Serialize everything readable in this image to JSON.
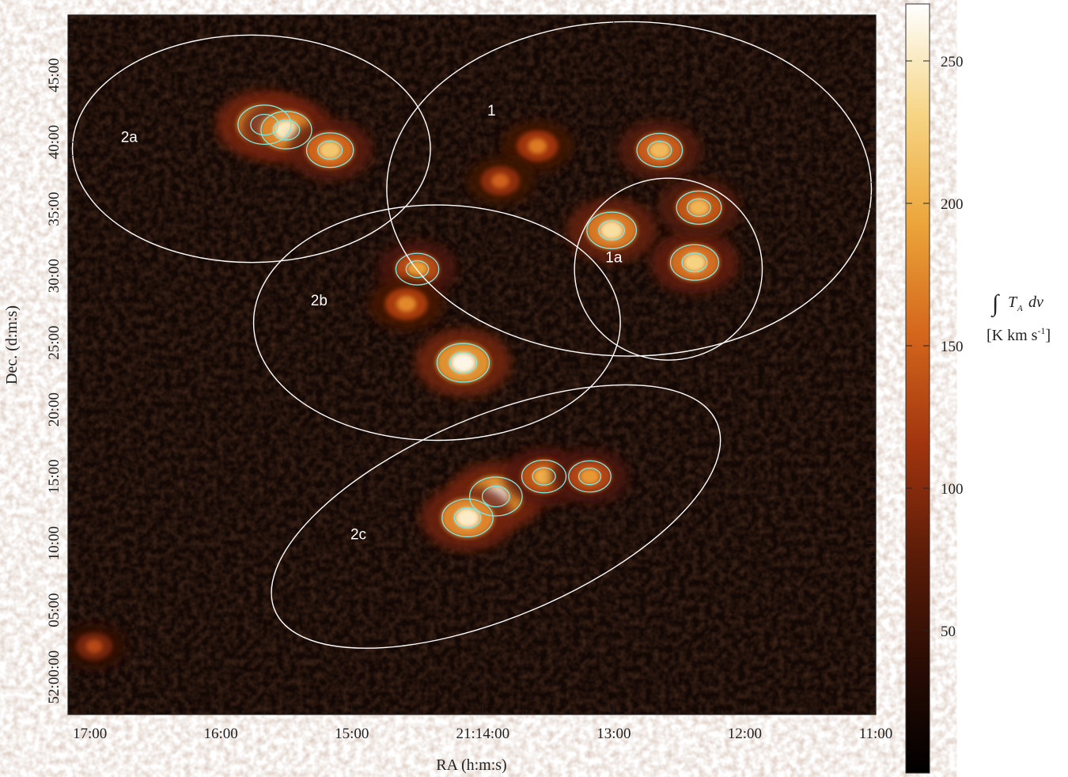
{
  "chart_data": {
    "type": "heatmap",
    "xlabel": "RA (h:m:s)",
    "ylabel": "Dec. (d:m:s)",
    "x_ticks": [
      {
        "label": "17:00",
        "ra_sec": 1020
      },
      {
        "label": "16:00",
        "ra_sec": 960
      },
      {
        "label": "15:00",
        "ra_sec": 900
      },
      {
        "label": "21:14:00",
        "ra_sec": 840
      },
      {
        "label": "13:00",
        "ra_sec": 780
      },
      {
        "label": "12:00",
        "ra_sec": 720
      },
      {
        "label": "11:00",
        "ra_sec": 660
      }
    ],
    "y_ticks": [
      {
        "label": "45:00",
        "dec_min": 45
      },
      {
        "label": "40:00",
        "dec_min": 40
      },
      {
        "label": "35:00",
        "dec_min": 35
      },
      {
        "label": "30:00",
        "dec_min": 30
      },
      {
        "label": "25:00",
        "dec_min": 25
      },
      {
        "label": "20:00",
        "dec_min": 20
      },
      {
        "label": "15:00",
        "dec_min": 15
      },
      {
        "label": "10:00",
        "dec_min": 10
      },
      {
        "label": "05:00",
        "dec_min": 5
      },
      {
        "label": "52:00:00",
        "dec_min": 0
      }
    ],
    "xlim": [
      1030,
      660
    ],
    "ylim": [
      -2.8,
      49.5
    ],
    "colorbar": {
      "ticks": [
        50,
        100,
        150,
        200,
        250
      ],
      "range": [
        0,
        270
      ],
      "colors": [
        "#000000",
        "#2a0c04",
        "#5c1c08",
        "#a2350f",
        "#d4661c",
        "#eca53a",
        "#f6d585",
        "#ffffff"
      ]
    },
    "colorbar_label_main": "T",
    "colorbar_label_sub": "A",
    "colorbar_label_diff": "dv",
    "colorbar_label_units_a": "[K km s",
    "colorbar_label_units_sup": "-1",
    "colorbar_label_units_b": "]",
    "regions": [
      {
        "label": "1",
        "ra_sec": 773,
        "dec_min": 36.5,
        "a_sec": 111,
        "b_min": 12.5
      },
      {
        "label": "1a",
        "ra_sec": 755,
        "dec_min": 30.5,
        "a_sec": 43,
        "b_min": 6.8
      },
      {
        "label": "2a",
        "ra_sec": 946,
        "dec_min": 39.5,
        "a_sec": 82,
        "b_min": 8.5
      },
      {
        "label": "2b",
        "ra_sec": 861,
        "dec_min": 26.5,
        "a_sec": 84,
        "b_min": 8.8
      },
      {
        "label": "2c",
        "ra_sec": 834,
        "dec_min": 12.0,
        "a_sec": 110,
        "b_min": 7.5,
        "angle_deg": -23
      }
    ],
    "region_labels": [
      {
        "label": "2a",
        "ra_sec": 1002,
        "dec_min": 40.0
      },
      {
        "label": "1",
        "ra_sec": 836,
        "dec_min": 42.0
      },
      {
        "label": "1a",
        "ra_sec": 780,
        "dec_min": 31.0
      },
      {
        "label": "2b",
        "ra_sec": 915,
        "dec_min": 27.8
      },
      {
        "label": "2c",
        "ra_sec": 897,
        "dec_min": 10.3
      }
    ],
    "emission_clumps": [
      {
        "ra_sec": 940,
        "dec_min": 41.3,
        "peak": 268
      },
      {
        "ra_sec": 930,
        "dec_min": 40.9,
        "peak": 250
      },
      {
        "ra_sec": 910,
        "dec_min": 39.4,
        "peak": 220
      },
      {
        "ra_sec": 849,
        "dec_min": 23.5,
        "peak": 262
      },
      {
        "ra_sec": 870,
        "dec_min": 30.5,
        "peak": 190
      },
      {
        "ra_sec": 875,
        "dec_min": 27.9,
        "peak": 175
      },
      {
        "ra_sec": 834,
        "dec_min": 13.5,
        "peak": 264
      },
      {
        "ra_sec": 847,
        "dec_min": 11.9,
        "peak": 252
      },
      {
        "ra_sec": 812,
        "dec_min": 15.0,
        "peak": 200
      },
      {
        "ra_sec": 791,
        "dec_min": 15.0,
        "peak": 185
      },
      {
        "ra_sec": 781,
        "dec_min": 33.4,
        "peak": 240
      },
      {
        "ra_sec": 759,
        "dec_min": 39.4,
        "peak": 210
      },
      {
        "ra_sec": 743,
        "dec_min": 31.0,
        "peak": 230
      },
      {
        "ra_sec": 741,
        "dec_min": 35.1,
        "peak": 205
      },
      {
        "ra_sec": 815,
        "dec_min": 39.7,
        "peak": 165
      },
      {
        "ra_sec": 832,
        "dec_min": 37.1,
        "peak": 150
      },
      {
        "ra_sec": 1018,
        "dec_min": 2.3,
        "peak": 130
      }
    ]
  }
}
